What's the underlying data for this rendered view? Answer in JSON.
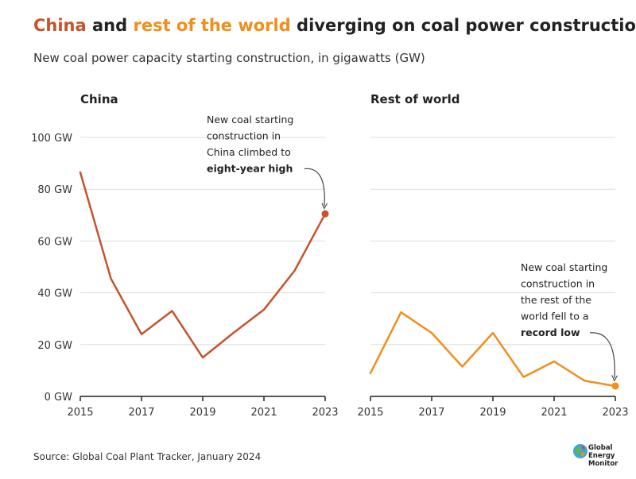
{
  "title": {
    "part1": "China",
    "part2": " and ",
    "part3": "rest of the world",
    "part4": " diverging on coal power construction"
  },
  "subtitle": "New coal power capacity starting construction, in gigawatts (GW)",
  "source": "Source: Global Coal Plant Tracker, January 2024",
  "logo": {
    "line1": "Global",
    "line2": "Energy",
    "line3": "Monitor"
  },
  "colors": {
    "china": "#c6532a",
    "rest": "#f28e1c",
    "grid": "#dddddd",
    "axis": "#222222"
  },
  "chart_data": [
    {
      "type": "line",
      "title": "China",
      "x": [
        2015,
        2016,
        2017,
        2018,
        2019,
        2020,
        2021,
        2022,
        2023
      ],
      "values": [
        86.5,
        45.5,
        24,
        33,
        15,
        24.5,
        33.5,
        48.5,
        70.5
      ],
      "xticks": [
        "2015",
        "2017",
        "2019",
        "2021",
        "2023"
      ],
      "yticks": [
        "0 GW",
        "20 GW",
        "40 GW",
        "60 GW",
        "80 GW",
        "100 GW"
      ],
      "ylim": [
        0,
        100
      ],
      "annotation": {
        "lines": [
          "New coal starting",
          "construction in",
          "China climbed to"
        ],
        "bold": "eight-year high"
      }
    },
    {
      "type": "line",
      "title": "Rest of world",
      "x": [
        2015,
        2016,
        2017,
        2018,
        2019,
        2020,
        2021,
        2022,
        2023
      ],
      "values": [
        9,
        32.5,
        24.5,
        11.5,
        24.5,
        7.5,
        13.5,
        6,
        4
      ],
      "xticks": [
        "2015",
        "2017",
        "2019",
        "2021",
        "2023"
      ],
      "ylim": [
        0,
        100
      ],
      "annotation": {
        "lines": [
          "New coal starting",
          "construction in",
          "the rest of the",
          "world fell to a"
        ],
        "bold": "record low"
      }
    }
  ]
}
